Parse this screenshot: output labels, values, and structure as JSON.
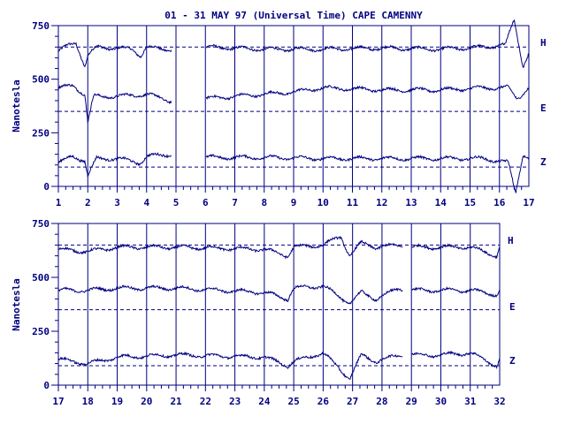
{
  "chart_data": [
    {
      "type": "line",
      "title": "01 - 31 MAY 97 (Universal Time) CAPE CAMENNY",
      "ylabel": "Nanotesla",
      "x_ticks": [
        "1",
        "2",
        "3",
        "4",
        "5",
        "6",
        "7",
        "8",
        "9",
        "10",
        "11",
        "12",
        "13",
        "14",
        "15",
        "16",
        "17"
      ],
      "xlim": [
        1,
        17
      ],
      "ylim": [
        0,
        750
      ],
      "y_ticks": [
        "0",
        "250",
        "500",
        "750"
      ],
      "baselines": [
        650,
        350,
        90
      ],
      "gaps": [
        [
          4.85,
          6.0
        ]
      ],
      "series": [
        {
          "name": "H",
          "baseline": 650,
          "values": [
            [
              1.0,
              630
            ],
            [
              1.3,
              655
            ],
            [
              1.6,
              670
            ],
            [
              1.9,
              560
            ],
            [
              2.0,
              610
            ],
            [
              2.3,
              650
            ],
            [
              3.0,
              645
            ],
            [
              3.5,
              640
            ],
            [
              3.8,
              610
            ],
            [
              4.0,
              650
            ],
            [
              4.5,
              640
            ],
            [
              4.8,
              640
            ],
            [
              6.0,
              650
            ],
            [
              8.0,
              640
            ],
            [
              10.0,
              640
            ],
            [
              12.0,
              645
            ],
            [
              14.0,
              640
            ],
            [
              15.5,
              650
            ],
            [
              16.2,
              660
            ],
            [
              16.5,
              780
            ],
            [
              16.8,
              560
            ],
            [
              17.0,
              620
            ]
          ]
        },
        {
          "name": "E",
          "baseline": 350,
          "values": [
            [
              1.0,
              460
            ],
            [
              1.5,
              470
            ],
            [
              1.9,
              430
            ],
            [
              2.0,
              300
            ],
            [
              2.2,
              420
            ],
            [
              3.0,
              420
            ],
            [
              4.0,
              430
            ],
            [
              4.8,
              400
            ],
            [
              6.0,
              410
            ],
            [
              8.0,
              430
            ],
            [
              9.0,
              440
            ],
            [
              10.0,
              460
            ],
            [
              12.0,
              450
            ],
            [
              14.0,
              450
            ],
            [
              15.5,
              460
            ],
            [
              16.3,
              460
            ],
            [
              16.6,
              410
            ],
            [
              17.0,
              460
            ]
          ]
        },
        {
          "name": "Z",
          "baseline": 90,
          "values": [
            [
              1.0,
              110
            ],
            [
              1.5,
              140
            ],
            [
              1.9,
              120
            ],
            [
              2.0,
              50
            ],
            [
              2.3,
              130
            ],
            [
              3.0,
              130
            ],
            [
              3.8,
              110
            ],
            [
              4.0,
              140
            ],
            [
              4.8,
              150
            ],
            [
              6.0,
              135
            ],
            [
              8.0,
              135
            ],
            [
              10.0,
              130
            ],
            [
              12.0,
              130
            ],
            [
              14.0,
              130
            ],
            [
              15.5,
              130
            ],
            [
              16.3,
              110
            ],
            [
              16.55,
              -30
            ],
            [
              16.8,
              150
            ],
            [
              17.0,
              130
            ]
          ]
        }
      ]
    },
    {
      "type": "line",
      "ylabel": "Nanotesla",
      "x_ticks": [
        "17",
        "18",
        "19",
        "20",
        "21",
        "22",
        "23",
        "24",
        "25",
        "26",
        "27",
        "28",
        "29",
        "30",
        "31",
        "32"
      ],
      "xlim": [
        17,
        32
      ],
      "ylim": [
        0,
        750
      ],
      "y_ticks": [
        "0",
        "250",
        "500",
        "750"
      ],
      "baselines": [
        650,
        350,
        90
      ],
      "gaps": [
        [
          28.7,
          29.0
        ]
      ],
      "series": [
        {
          "name": "H",
          "baseline": 650,
          "values": [
            [
              17.0,
              630
            ],
            [
              18.0,
              620
            ],
            [
              19.0,
              640
            ],
            [
              21.0,
              640
            ],
            [
              24.0,
              630
            ],
            [
              24.8,
              600
            ],
            [
              25.0,
              640
            ],
            [
              26.0,
              650
            ],
            [
              26.6,
              690
            ],
            [
              26.9,
              600
            ],
            [
              27.3,
              660
            ],
            [
              27.8,
              640
            ],
            [
              28.6,
              650
            ],
            [
              29.0,
              640
            ],
            [
              30.0,
              640
            ],
            [
              31.0,
              640
            ],
            [
              31.9,
              600
            ],
            [
              32.0,
              640
            ]
          ]
        },
        {
          "name": "E",
          "baseline": 350,
          "values": [
            [
              17.0,
              440
            ],
            [
              18.0,
              440
            ],
            [
              19.0,
              450
            ],
            [
              21.0,
              450
            ],
            [
              24.0,
              430
            ],
            [
              24.8,
              400
            ],
            [
              25.0,
              450
            ],
            [
              26.0,
              460
            ],
            [
              26.9,
              380
            ],
            [
              27.3,
              430
            ],
            [
              27.8,
              400
            ],
            [
              28.6,
              450
            ],
            [
              29.0,
              440
            ],
            [
              30.0,
              440
            ],
            [
              31.0,
              440
            ],
            [
              31.9,
              420
            ],
            [
              32.0,
              440
            ]
          ]
        },
        {
          "name": "Z",
          "baseline": 90,
          "values": [
            [
              17.0,
              120
            ],
            [
              18.0,
              100
            ],
            [
              19.0,
              130
            ],
            [
              21.0,
              140
            ],
            [
              24.0,
              130
            ],
            [
              24.8,
              90
            ],
            [
              25.0,
              110
            ],
            [
              26.0,
              150
            ],
            [
              26.9,
              30
            ],
            [
              27.3,
              140
            ],
            [
              27.8,
              110
            ],
            [
              28.6,
              140
            ],
            [
              29.0,
              140
            ],
            [
              30.0,
              140
            ],
            [
              31.0,
              150
            ],
            [
              31.9,
              90
            ],
            [
              32.0,
              120
            ]
          ]
        }
      ]
    }
  ]
}
